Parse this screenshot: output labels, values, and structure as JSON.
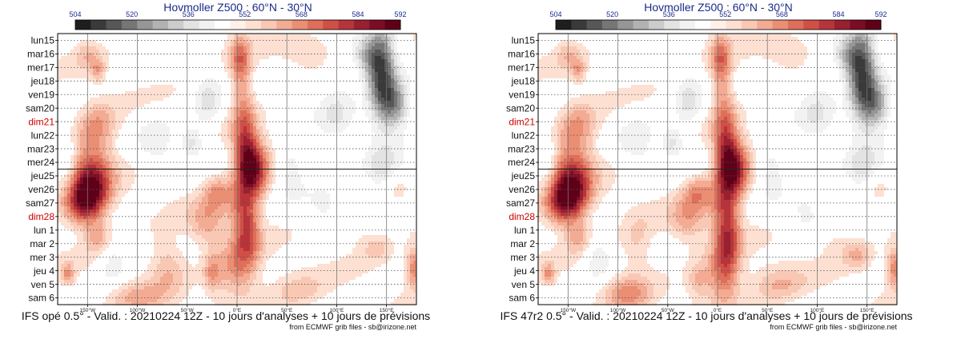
{
  "chart_data": [
    {
      "type": "heatmap",
      "title": "Hovmoller Z500 : 60°N - 30°N",
      "model": "IFS opé 0.5°",
      "caption": "IFS opé 0.5° - Valid. : 20210224 12Z - 10 jours d'analyses + 10 jours de prévisions",
      "credit": "from ECMWF grib files - sb@irizone.net",
      "colorbar": {
        "ticks": [
          "504",
          "520",
          "536",
          "552",
          "568",
          "584",
          "592"
        ],
        "colors": [
          "#1e1e1e",
          "#3a3a3a",
          "#575757",
          "#767676",
          "#969696",
          "#b2b2b2",
          "#cccccc",
          "#e3e3e3",
          "#f2f2f2",
          "#ffffff",
          "#fff0e8",
          "#fde0d2",
          "#f9c8b4",
          "#f3ab93",
          "#ea8e74",
          "#de6f5a",
          "#cf5047",
          "#b7343a",
          "#982030",
          "#7a0d24",
          "#5e0018"
        ]
      },
      "y_labels": [
        "lun15",
        "mar16",
        "mer17",
        "jeu18",
        "ven19",
        "sam20",
        "dim21",
        "lun22",
        "mar23",
        "mer24",
        "jeu25",
        "ven26",
        "sam27",
        "dim28",
        "lun 1",
        "mar 2",
        "mer 3",
        "jeu 4",
        "ven 5",
        "sam 6"
      ],
      "weekend_labels": [
        "dim21",
        "dim28"
      ],
      "x_labels": [
        "150°W",
        "100°W",
        "50°W",
        "0°E",
        "50°E",
        "100°E",
        "150°E"
      ],
      "xlim": [
        -180,
        180
      ],
      "analysis_forecast_boundary": "jeu25",
      "anomalies": [
        {
          "lon": -150,
          "day": 11.3,
          "value": 30,
          "sx": 15,
          "sy": 1.2
        },
        {
          "lon": -145,
          "day": 9.5,
          "value": 20,
          "sx": 14,
          "sy": 1.5
        },
        {
          "lon": -155,
          "day": 12.5,
          "value": 16,
          "sx": 14,
          "sy": 1.0
        },
        {
          "lon": -140,
          "day": 14.5,
          "value": 12,
          "sx": 9,
          "sy": 0.8
        },
        {
          "lon": -140,
          "day": 2.2,
          "value": 12,
          "sx": 5,
          "sy": 0.6
        },
        {
          "lon": -150,
          "day": 1.0,
          "value": 8,
          "sx": 9,
          "sy": 0.8
        },
        {
          "lon": -140,
          "day": 6.3,
          "value": 14,
          "sx": 14,
          "sy": 1.2
        },
        {
          "lon": -170,
          "day": 17.3,
          "value": 14,
          "sx": 5,
          "sy": 0.6
        },
        {
          "lon": 15,
          "day": 9.5,
          "value": 36,
          "sx": 11,
          "sy": 1.5
        },
        {
          "lon": 8,
          "day": 7.5,
          "value": 18,
          "sx": 8,
          "sy": 2.0
        },
        {
          "lon": 3,
          "day": 1.3,
          "value": 16,
          "sx": 7,
          "sy": 1.3
        },
        {
          "lon": 5,
          "day": 4.0,
          "value": 10,
          "sx": 8,
          "sy": 2.0
        },
        {
          "lon": 10,
          "day": 14.2,
          "value": 22,
          "sx": 9,
          "sy": 1.6
        },
        {
          "lon": 5,
          "day": 12.2,
          "value": 12,
          "sx": 10,
          "sy": 1.2
        },
        {
          "lon": 0,
          "day": 17.0,
          "value": 16,
          "sx": 15,
          "sy": 1.5
        },
        {
          "lon": -20,
          "day": 11.2,
          "value": 14,
          "sx": 10,
          "sy": 0.9
        },
        {
          "lon": -30,
          "day": 13.5,
          "value": 12,
          "sx": 13,
          "sy": 1.2
        },
        {
          "lon": -25,
          "day": 17.2,
          "value": 12,
          "sx": 6,
          "sy": 1.0
        },
        {
          "lon": -70,
          "day": 16.5,
          "value": 10,
          "sx": 13,
          "sy": 1.5
        },
        {
          "lon": -100,
          "day": 19.0,
          "value": 10,
          "sx": 20,
          "sy": 0.8
        },
        {
          "lon": 60,
          "day": 18.5,
          "value": 8,
          "sx": 20,
          "sy": 1.0
        },
        {
          "lon": 75,
          "day": 0.8,
          "value": 7,
          "sx": 18,
          "sy": 0.8
        },
        {
          "lon": 110,
          "day": 14.0,
          "value": 6,
          "sx": 18,
          "sy": 1.0
        },
        {
          "lon": 160,
          "day": 10.5,
          "value": 8,
          "sx": 10,
          "sy": 1.0
        },
        {
          "lon": 178,
          "day": 16.8,
          "value": 20,
          "sx": 6,
          "sy": 1.0
        },
        {
          "lon": 140,
          "day": 15.3,
          "value": 8,
          "sx": 10,
          "sy": 0.7
        },
        {
          "lon": 145,
          "day": 2.5,
          "value": -34,
          "sx": 10,
          "sy": 2.5
        },
        {
          "lon": 160,
          "day": 4.8,
          "value": -22,
          "sx": 10,
          "sy": 1.2
        },
        {
          "lon": 130,
          "day": 1.2,
          "value": -14,
          "sx": 10,
          "sy": 1.0
        },
        {
          "lon": 150,
          "day": 9.8,
          "value": -14,
          "sx": 16,
          "sy": 1.2
        },
        {
          "lon": -45,
          "day": 7.5,
          "value": -12,
          "sx": 8,
          "sy": 0.8
        },
        {
          "lon": -30,
          "day": 4.5,
          "value": -11,
          "sx": 10,
          "sy": 1.5
        },
        {
          "lon": 55,
          "day": 9.2,
          "value": -10,
          "sx": 10,
          "sy": 1.5
        },
        {
          "lon": -125,
          "day": 16.5,
          "value": -9,
          "sx": 10,
          "sy": 1.2
        },
        {
          "lon": 100,
          "day": 5.0,
          "value": -9,
          "sx": 15,
          "sy": 2.0
        },
        {
          "lon": -80,
          "day": 7.5,
          "value": -8,
          "sx": 14,
          "sy": 1.5
        },
        {
          "lon": 90,
          "day": 12.5,
          "value": -8,
          "sx": 15,
          "sy": 1.5
        },
        {
          "lon": -170,
          "day": 9.0,
          "value": -7,
          "sx": 6,
          "sy": 2.0
        }
      ]
    },
    {
      "type": "heatmap",
      "title": "Hovmoller Z500 : 60°N - 30°N",
      "model": "IFS 47r2 0.5°",
      "caption": "IFS 47r2 0.5° - Valid. : 20210224 12Z - 10 jours d'analyses + 10 jours de prévisions",
      "credit": "from ECMWF grib files - sb@irizone.net",
      "colorbar": {
        "ticks": [
          "504",
          "520",
          "536",
          "552",
          "568",
          "584",
          "592"
        ],
        "colors": [
          "#1e1e1e",
          "#3a3a3a",
          "#575757",
          "#767676",
          "#969696",
          "#b2b2b2",
          "#cccccc",
          "#e3e3e3",
          "#f2f2f2",
          "#ffffff",
          "#fff0e8",
          "#fde0d2",
          "#f9c8b4",
          "#f3ab93",
          "#ea8e74",
          "#de6f5a",
          "#cf5047",
          "#b7343a",
          "#982030",
          "#7a0d24",
          "#5e0018"
        ]
      },
      "y_labels": [
        "lun15",
        "mar16",
        "mer17",
        "jeu18",
        "ven19",
        "sam20",
        "dim21",
        "lun22",
        "mar23",
        "mer24",
        "jeu25",
        "ven26",
        "sam27",
        "dim28",
        "lun 1",
        "mar 2",
        "mer 3",
        "jeu 4",
        "ven 5",
        "sam 6"
      ],
      "weekend_labels": [
        "dim21",
        "dim28"
      ],
      "x_labels": [
        "150°W",
        "100°W",
        "50°W",
        "0°E",
        "50°E",
        "100°E",
        "150°E"
      ],
      "xlim": [
        -180,
        180
      ],
      "analysis_forecast_boundary": "jeu25",
      "anomalies": [
        {
          "lon": -150,
          "day": 11.3,
          "value": 30,
          "sx": 15,
          "sy": 1.2
        },
        {
          "lon": -145,
          "day": 9.5,
          "value": 20,
          "sx": 14,
          "sy": 1.5
        },
        {
          "lon": -155,
          "day": 12.5,
          "value": 16,
          "sx": 14,
          "sy": 1.0
        },
        {
          "lon": -140,
          "day": 14.5,
          "value": 12,
          "sx": 9,
          "sy": 0.8
        },
        {
          "lon": -140,
          "day": 2.2,
          "value": 12,
          "sx": 5,
          "sy": 0.6
        },
        {
          "lon": -150,
          "day": 1.0,
          "value": 8,
          "sx": 9,
          "sy": 0.8
        },
        {
          "lon": -140,
          "day": 6.3,
          "value": 14,
          "sx": 14,
          "sy": 1.2
        },
        {
          "lon": -170,
          "day": 17.3,
          "value": 14,
          "sx": 5,
          "sy": 0.6
        },
        {
          "lon": 15,
          "day": 9.5,
          "value": 36,
          "sx": 11,
          "sy": 1.5
        },
        {
          "lon": 8,
          "day": 7.5,
          "value": 18,
          "sx": 8,
          "sy": 2.0
        },
        {
          "lon": 3,
          "day": 1.3,
          "value": 16,
          "sx": 7,
          "sy": 1.3
        },
        {
          "lon": 5,
          "day": 4.0,
          "value": 10,
          "sx": 8,
          "sy": 2.0
        },
        {
          "lon": 10,
          "day": 14.5,
          "value": 26,
          "sx": 9,
          "sy": 1.8
        },
        {
          "lon": 5,
          "day": 12.0,
          "value": 12,
          "sx": 10,
          "sy": 1.2
        },
        {
          "lon": 5,
          "day": 17.5,
          "value": 18,
          "sx": 12,
          "sy": 1.5
        },
        {
          "lon": -20,
          "day": 11.2,
          "value": 14,
          "sx": 10,
          "sy": 0.9
        },
        {
          "lon": -30,
          "day": 13.2,
          "value": 12,
          "sx": 13,
          "sy": 1.2
        },
        {
          "lon": -20,
          "day": 17.8,
          "value": 10,
          "sx": 8,
          "sy": 1.0
        },
        {
          "lon": -80,
          "day": 15.0,
          "value": 8,
          "sx": 12,
          "sy": 1.5
        },
        {
          "lon": -90,
          "day": 18.8,
          "value": 14,
          "sx": 16,
          "sy": 0.9
        },
        {
          "lon": 60,
          "day": 18.0,
          "value": 10,
          "sx": 20,
          "sy": 1.0
        },
        {
          "lon": 75,
          "day": 0.8,
          "value": 7,
          "sx": 18,
          "sy": 0.8
        },
        {
          "lon": 110,
          "day": 14.5,
          "value": 6,
          "sx": 18,
          "sy": 1.0
        },
        {
          "lon": 160,
          "day": 10.5,
          "value": 8,
          "sx": 10,
          "sy": 1.0
        },
        {
          "lon": 178,
          "day": 16.8,
          "value": 20,
          "sx": 6,
          "sy": 1.0
        },
        {
          "lon": 140,
          "day": 15.8,
          "value": 10,
          "sx": 10,
          "sy": 0.7
        },
        {
          "lon": 145,
          "day": 2.5,
          "value": -34,
          "sx": 10,
          "sy": 2.5
        },
        {
          "lon": 160,
          "day": 4.8,
          "value": -22,
          "sx": 10,
          "sy": 1.2
        },
        {
          "lon": 130,
          "day": 1.2,
          "value": -14,
          "sx": 10,
          "sy": 1.0
        },
        {
          "lon": 150,
          "day": 9.8,
          "value": -14,
          "sx": 16,
          "sy": 1.2
        },
        {
          "lon": -45,
          "day": 7.5,
          "value": -12,
          "sx": 8,
          "sy": 0.8
        },
        {
          "lon": -30,
          "day": 4.5,
          "value": -11,
          "sx": 10,
          "sy": 1.5
        },
        {
          "lon": 55,
          "day": 9.2,
          "value": -10,
          "sx": 10,
          "sy": 1.5
        },
        {
          "lon": -120,
          "day": 16.2,
          "value": -10,
          "sx": 10,
          "sy": 1.2
        },
        {
          "lon": 100,
          "day": 5.0,
          "value": -9,
          "sx": 15,
          "sy": 2.0
        },
        {
          "lon": -80,
          "day": 7.5,
          "value": -8,
          "sx": 14,
          "sy": 1.5
        },
        {
          "lon": 90,
          "day": 13.0,
          "value": -8,
          "sx": 15,
          "sy": 1.5
        },
        {
          "lon": -170,
          "day": 9.0,
          "value": -7,
          "sx": 6,
          "sy": 2.0
        }
      ]
    }
  ]
}
